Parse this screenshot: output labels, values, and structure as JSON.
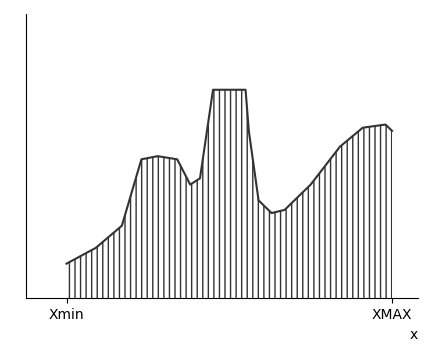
{
  "chart_data": {
    "type": "area",
    "x": [
      0,
      0.9,
      1.7,
      2.3,
      2.8,
      3.4,
      3.8,
      4.1,
      4.4,
      4.5,
      5.5,
      5.6,
      5.9,
      6.3,
      6.7,
      7.5,
      8.4,
      9.1,
      9.8,
      10
    ],
    "values": [
      1.1,
      1.6,
      2.3,
      4.4,
      4.5,
      4.4,
      3.6,
      3.8,
      5.9,
      6.6,
      6.6,
      5.3,
      3.1,
      2.7,
      2.8,
      3.6,
      4.8,
      5.4,
      5.5,
      5.3
    ],
    "x_label": "x",
    "xlim": [
      -1.25,
      10.8
    ],
    "ylim": [
      0,
      9
    ],
    "xticks": [
      {
        "value": 0,
        "label": "Xmin"
      },
      {
        "value": 10,
        "label": "XMAX"
      }
    ],
    "yticks": [],
    "tick_labels": "x",
    "color": "#333333",
    "grid": false
  }
}
